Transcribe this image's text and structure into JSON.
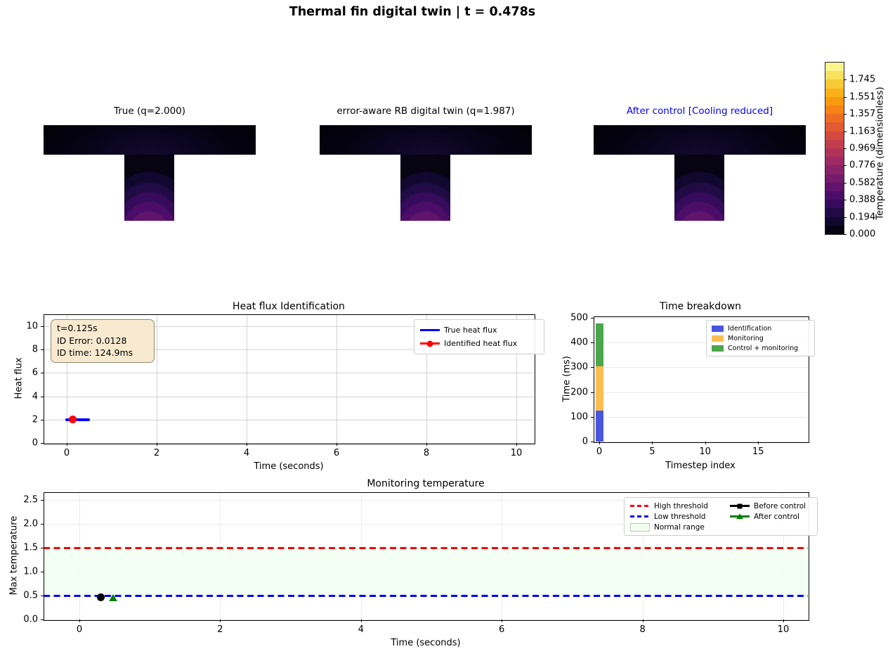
{
  "figure": {
    "suptitle": "Thermal fin digital twin | t = 0.478s"
  },
  "fin_field": {
    "base_colors": [
      "#140b30",
      "#0a0520",
      "#040210",
      "#02010a"
    ],
    "stem_colors": [
      "#60146c",
      "#4c0d69",
      "#370b5c",
      "#210b45",
      "#11082f",
      "#060312"
    ]
  },
  "colorbar": {
    "label": "Temperature (dimensionless)",
    "vmin": 0.0,
    "vmax": 1.939,
    "tick_labels": [
      "1.745",
      "1.551",
      "1.357",
      "1.163",
      "0.969",
      "0.776",
      "0.582",
      "0.388",
      "0.194",
      "0.000"
    ],
    "band_colors_top_to_bottom": [
      "#faf58c",
      "#f7e15d",
      "#f7ca37",
      "#fab119",
      "#f99a0e",
      "#f58315",
      "#ed6e21",
      "#e25b32",
      "#d54a40",
      "#c43d4d",
      "#b13259",
      "#9d2a62",
      "#892269",
      "#741b6c",
      "#60146c",
      "#4c0d69",
      "#370b5c",
      "#210b45",
      "#11082f",
      "#060312"
    ]
  },
  "chart_data": [
    {
      "type": "heatmap",
      "title": "True (q=2.000)",
      "colormap": "inferno",
      "vmin": 0.0,
      "vmax": 1.939,
      "note": "T-shaped fin; base plate near 0 (black), stem tip about 0.55 (purple)"
    },
    {
      "type": "heatmap",
      "title": "error-aware RB digital twin (q=1.987)",
      "colormap": "inferno",
      "vmin": 0.0,
      "vmax": 1.939,
      "note": "T-shaped fin; base plate near 0 (black), stem tip about 0.55 (purple)"
    },
    {
      "type": "heatmap",
      "title": "After control [Cooling reduced]",
      "title_color": "#0000ff",
      "colormap": "inferno",
      "vmin": 0.0,
      "vmax": 1.939,
      "note": "T-shaped fin; base plate near 0 (black), stem tip about 0.55 (purple)"
    },
    {
      "type": "line",
      "title": "Heat flux Identification",
      "xlabel": "Time (seconds)",
      "ylabel": "Heat flux",
      "xlim": [
        -0.52,
        10.4
      ],
      "ylim": [
        0,
        11
      ],
      "xticks": [
        "0",
        "2",
        "4",
        "6",
        "8",
        "10"
      ],
      "yticks": [
        "0",
        "2",
        "4",
        "6",
        "8",
        "10"
      ],
      "grid": true,
      "legend_position": "upper right",
      "series": [
        {
          "name": "True heat flux",
          "color": "#0000ff",
          "x": [
            0,
            0.478
          ],
          "y": [
            2,
            2
          ]
        },
        {
          "name": "Identified heat flux",
          "color": "#ff0000",
          "marker": "circle",
          "points": [
            [
              0.125,
              2
            ]
          ]
        }
      ],
      "annotation": {
        "lines": [
          "t=0.125s",
          "ID Error: 0.0128",
          "ID time: 124.9ms"
        ],
        "facecolor": "#f7ead0",
        "edgecolor": "#91886a"
      }
    },
    {
      "type": "bar",
      "title": "Time breakdown",
      "xlabel": "Timestep index",
      "ylabel": "Time (ms)",
      "xlim": [
        -0.6,
        19.6
      ],
      "ylim": [
        0,
        500
      ],
      "xticks": [
        "0",
        "5",
        "10",
        "15"
      ],
      "yticks": [
        "0",
        "100",
        "200",
        "300",
        "400",
        "500"
      ],
      "grid": "horizontal",
      "categories": [
        0
      ],
      "stacked": true,
      "series": [
        {
          "name": "Identification",
          "color": "#4a55e0",
          "values": [
            125
          ]
        },
        {
          "name": "Monitoring",
          "color": "#fbbd51",
          "values": [
            178
          ]
        },
        {
          "name": "Control + monitoring",
          "color": "#4ba64c",
          "values": [
            175
          ]
        }
      ],
      "legend_position": "upper right"
    },
    {
      "type": "line",
      "title": "Monitoring temperature",
      "xlabel": "Time (seconds)",
      "ylabel": "Max temperature",
      "xlim": [
        -0.5,
        10.35
      ],
      "ylim": [
        0,
        2.7
      ],
      "xticks": [
        "0",
        "2",
        "4",
        "6",
        "8",
        "10"
      ],
      "yticks": [
        "0.0",
        "0.5",
        "1.0",
        "1.5",
        "2.0",
        "2.5"
      ],
      "grid": true,
      "thresholds": {
        "high": {
          "label": "High threshold",
          "value": 1.5,
          "color": "#ff0000",
          "style": "dashed"
        },
        "low": {
          "label": "Low threshold",
          "value": 0.5,
          "color": "#0000ff",
          "style": "dashed"
        }
      },
      "normal_range": {
        "label": "Normal range",
        "range": [
          0.5,
          1.5
        ],
        "color": "#f0fff0"
      },
      "series": [
        {
          "name": "Before control",
          "color": "#000000",
          "marker": "circle",
          "points": [
            [
              0.3,
              0.47
            ]
          ]
        },
        {
          "name": "After control",
          "color": "#008000",
          "marker": "triangle",
          "points": [
            [
              0.478,
              0.46
            ]
          ]
        }
      ],
      "legend_position": "upper right"
    }
  ]
}
